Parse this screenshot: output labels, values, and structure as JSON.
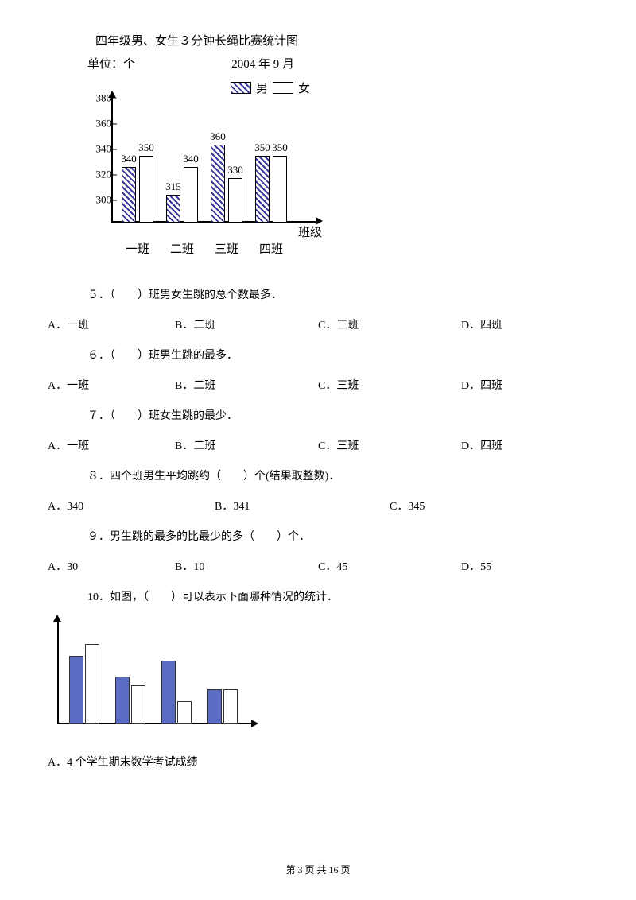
{
  "chart1": {
    "title": "四年级男、女生３分钟长绳比赛统计图",
    "unit_label": "单位：个",
    "date": "2004 年 9 月",
    "legend": {
      "male": "男",
      "female": "女"
    },
    "y_ticks": [
      "300",
      "320",
      "340",
      "360",
      "380"
    ],
    "y_min": 290,
    "y_max": 390,
    "x_axis_title": "班级",
    "categories": [
      "一班",
      "二班",
      "三班",
      "四班"
    ],
    "data": [
      {
        "male": 340,
        "female": 350
      },
      {
        "male": 315,
        "female": 340
      },
      {
        "male": 360,
        "female": 330
      },
      {
        "male": 350,
        "female": 350
      }
    ]
  },
  "questions": {
    "q5": {
      "text": "５．（　　）班男女生跳的总个数最多．"
    },
    "q5_opts": [
      "A．一班",
      "B．二班",
      "C．三班",
      "D．四班"
    ],
    "q6": {
      "text": "６．（　　）班男生跳的最多．"
    },
    "q6_opts": [
      "A．一班",
      "B．二班",
      "C．三班",
      "D．四班"
    ],
    "q7": {
      "text": "７．（　　）班女生跳的最少．"
    },
    "q7_opts": [
      "A．一班",
      "B．二班",
      "C．三班",
      "D．四班"
    ],
    "q8": {
      "text": "８．四个班男生平均跳约（　　）个(结果取整数)．"
    },
    "q8_opts": [
      "A．340",
      "B．341",
      "C．345"
    ],
    "q9": {
      "text": "９．男生跳的最多的比最少的多（　　）个．"
    },
    "q9_opts": [
      "A．30",
      "B．10",
      "C．45",
      "D．55"
    ],
    "q10": {
      "text": "10．如图，（　　）可以表示下面哪种情况的统计．"
    }
  },
  "chart2": {
    "pairs": [
      {
        "filled": 75,
        "outline": 88
      },
      {
        "filled": 52,
        "outline": 43
      },
      {
        "filled": 70,
        "outline": 25
      },
      {
        "filled": 38,
        "outline": 38
      }
    ],
    "fill_color": "#5b6cc4"
  },
  "answer_a": "A．4 个学生期末数学考试成绩",
  "footer": "第 3 页 共 16 页"
}
